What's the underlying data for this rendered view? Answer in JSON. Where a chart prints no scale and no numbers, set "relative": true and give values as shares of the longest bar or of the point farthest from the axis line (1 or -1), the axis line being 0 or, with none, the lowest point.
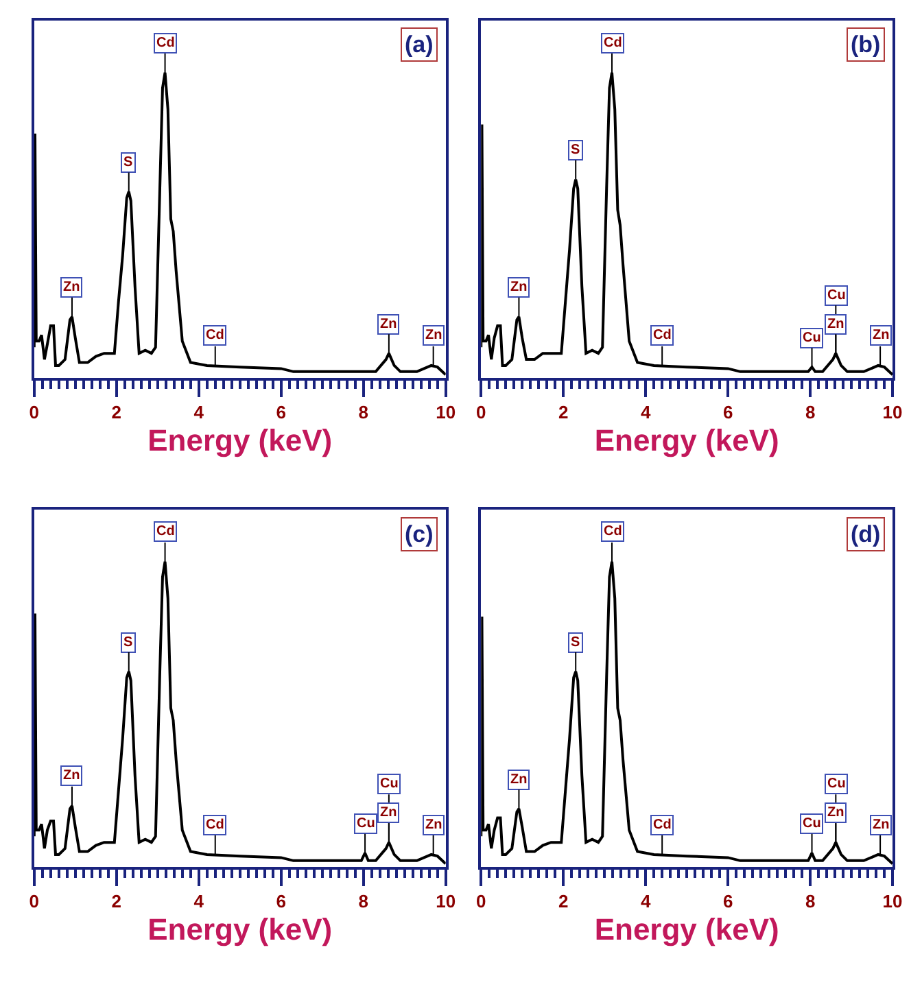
{
  "chart_data": [
    {
      "type": "line",
      "title": "(a)",
      "xlabel": "Energy (keV)",
      "relative": true,
      "xlim": [
        0,
        10
      ],
      "xticks": [
        0,
        2,
        4,
        6,
        8,
        10
      ],
      "tick_labels": "x",
      "x": [
        0.0,
        0.02,
        0.05,
        0.12,
        0.18,
        0.25,
        0.32,
        0.4,
        0.47,
        0.52,
        0.6,
        0.75,
        0.87,
        0.92,
        1.0,
        1.1,
        1.3,
        1.5,
        1.7,
        1.95,
        2.05,
        2.15,
        2.25,
        2.3,
        2.35,
        2.45,
        2.55,
        2.7,
        2.85,
        2.95,
        3.05,
        3.12,
        3.18,
        3.25,
        3.32,
        3.38,
        3.45,
        3.6,
        3.8,
        4.2,
        5.0,
        6.0,
        6.3,
        7.5,
        8.3,
        8.55,
        8.62,
        8.75,
        8.9,
        9.3,
        9.65,
        9.8,
        10.0
      ],
      "series": [
        {
          "color": "#000000",
          "values": [
            0.1,
            0.8,
            0.12,
            0.12,
            0.14,
            0.06,
            0.11,
            0.17,
            0.17,
            0.04,
            0.04,
            0.06,
            0.19,
            0.2,
            0.13,
            0.05,
            0.05,
            0.07,
            0.08,
            0.08,
            0.25,
            0.4,
            0.59,
            0.61,
            0.58,
            0.3,
            0.08,
            0.09,
            0.08,
            0.1,
            0.6,
            0.95,
            1.0,
            0.88,
            0.52,
            0.48,
            0.35,
            0.12,
            0.05,
            0.04,
            0.035,
            0.03,
            0.02,
            0.02,
            0.02,
            0.06,
            0.08,
            0.04,
            0.02,
            0.02,
            0.04,
            0.035,
            0.01
          ]
        }
      ],
      "annotations": [
        {
          "text": "Zn",
          "x": 0.92,
          "y": 0.2
        },
        {
          "text": "S",
          "x": 2.3,
          "y": 0.61
        },
        {
          "text": "Cd",
          "x": 3.18,
          "y": 1.0
        },
        {
          "text": "Cd",
          "x": 4.4,
          "y": 0.04
        },
        {
          "text": "Zn",
          "x": 8.62,
          "y": 0.08
        },
        {
          "text": "Zn",
          "x": 9.7,
          "y": 0.04
        }
      ]
    },
    {
      "type": "line",
      "title": "(b)",
      "xlabel": "Energy (keV)",
      "relative": true,
      "xlim": [
        0,
        10
      ],
      "xticks": [
        0,
        2,
        4,
        6,
        8,
        10
      ],
      "tick_labels": "x",
      "x": [
        0.0,
        0.02,
        0.05,
        0.12,
        0.18,
        0.25,
        0.32,
        0.4,
        0.47,
        0.52,
        0.6,
        0.75,
        0.87,
        0.92,
        1.0,
        1.1,
        1.3,
        1.5,
        1.7,
        1.95,
        2.05,
        2.15,
        2.25,
        2.3,
        2.35,
        2.45,
        2.55,
        2.7,
        2.85,
        2.95,
        3.05,
        3.12,
        3.18,
        3.25,
        3.32,
        3.38,
        3.45,
        3.6,
        3.8,
        4.2,
        5.0,
        6.0,
        6.3,
        7.5,
        7.95,
        8.04,
        8.12,
        8.3,
        8.55,
        8.62,
        8.75,
        8.9,
        9.3,
        9.65,
        9.8,
        10.0
      ],
      "series": [
        {
          "color": "#000000",
          "values": [
            0.1,
            0.83,
            0.12,
            0.12,
            0.14,
            0.06,
            0.13,
            0.17,
            0.17,
            0.04,
            0.04,
            0.06,
            0.19,
            0.2,
            0.13,
            0.06,
            0.06,
            0.08,
            0.08,
            0.08,
            0.25,
            0.42,
            0.62,
            0.65,
            0.62,
            0.3,
            0.08,
            0.09,
            0.08,
            0.1,
            0.62,
            0.95,
            1.0,
            0.88,
            0.55,
            0.5,
            0.37,
            0.12,
            0.05,
            0.04,
            0.035,
            0.03,
            0.02,
            0.02,
            0.02,
            0.035,
            0.02,
            0.02,
            0.06,
            0.08,
            0.04,
            0.02,
            0.02,
            0.04,
            0.035,
            0.01
          ]
        }
      ],
      "annotations": [
        {
          "text": "Zn",
          "x": 0.92,
          "y": 0.2
        },
        {
          "text": "S",
          "x": 2.3,
          "y": 0.65
        },
        {
          "text": "Cd",
          "x": 3.18,
          "y": 1.0
        },
        {
          "text": "Cd",
          "x": 4.4,
          "y": 0.04
        },
        {
          "text": "Cu",
          "x": 8.04,
          "y": 0.035
        },
        {
          "text": "Zn",
          "x": 8.62,
          "y": 0.08
        },
        {
          "text": "Cu",
          "x": 8.62,
          "y": 0.08
        },
        {
          "text": "Zn",
          "x": 9.7,
          "y": 0.04
        }
      ]
    },
    {
      "type": "line",
      "title": "(c)",
      "xlabel": "Energy (keV)",
      "relative": true,
      "xlim": [
        0,
        10
      ],
      "xticks": [
        0,
        2,
        4,
        6,
        8,
        10
      ],
      "tick_labels": "x",
      "x": [
        0.0,
        0.02,
        0.05,
        0.12,
        0.18,
        0.25,
        0.32,
        0.4,
        0.47,
        0.52,
        0.6,
        0.75,
        0.87,
        0.92,
        1.0,
        1.1,
        1.3,
        1.5,
        1.7,
        1.95,
        2.05,
        2.15,
        2.25,
        2.3,
        2.35,
        2.45,
        2.55,
        2.7,
        2.85,
        2.95,
        3.05,
        3.12,
        3.18,
        3.25,
        3.32,
        3.38,
        3.45,
        3.6,
        3.8,
        4.2,
        5.0,
        6.0,
        6.3,
        7.5,
        7.95,
        8.04,
        8.12,
        8.3,
        8.55,
        8.62,
        8.75,
        8.9,
        9.3,
        9.65,
        9.8,
        10.0
      ],
      "series": [
        {
          "color": "#000000",
          "values": [
            0.1,
            0.83,
            0.12,
            0.12,
            0.14,
            0.06,
            0.12,
            0.15,
            0.15,
            0.04,
            0.04,
            0.06,
            0.19,
            0.2,
            0.13,
            0.05,
            0.05,
            0.07,
            0.08,
            0.08,
            0.25,
            0.42,
            0.62,
            0.64,
            0.61,
            0.3,
            0.08,
            0.09,
            0.08,
            0.1,
            0.62,
            0.95,
            1.0,
            0.88,
            0.52,
            0.48,
            0.35,
            0.12,
            0.05,
            0.04,
            0.035,
            0.03,
            0.02,
            0.02,
            0.02,
            0.045,
            0.02,
            0.02,
            0.06,
            0.08,
            0.04,
            0.02,
            0.02,
            0.04,
            0.035,
            0.01
          ]
        }
      ],
      "annotations": [
        {
          "text": "Zn",
          "x": 0.92,
          "y": 0.2
        },
        {
          "text": "S",
          "x": 2.3,
          "y": 0.64
        },
        {
          "text": "Cd",
          "x": 3.18,
          "y": 1.0
        },
        {
          "text": "Cd",
          "x": 4.4,
          "y": 0.04
        },
        {
          "text": "Cu",
          "x": 8.04,
          "y": 0.045
        },
        {
          "text": "Zn",
          "x": 8.62,
          "y": 0.08
        },
        {
          "text": "Cu",
          "x": 8.62,
          "y": 0.08
        },
        {
          "text": "Zn",
          "x": 9.7,
          "y": 0.04
        }
      ]
    },
    {
      "type": "line",
      "title": "(d)",
      "xlabel": "Energy (keV)",
      "relative": true,
      "xlim": [
        0,
        10
      ],
      "xticks": [
        0,
        2,
        4,
        6,
        8,
        10
      ],
      "tick_labels": "x",
      "x": [
        0.0,
        0.02,
        0.05,
        0.12,
        0.18,
        0.25,
        0.32,
        0.4,
        0.47,
        0.52,
        0.6,
        0.75,
        0.87,
        0.92,
        1.0,
        1.1,
        1.3,
        1.5,
        1.7,
        1.95,
        2.05,
        2.15,
        2.25,
        2.3,
        2.35,
        2.45,
        2.55,
        2.7,
        2.85,
        2.95,
        3.05,
        3.12,
        3.18,
        3.25,
        3.32,
        3.38,
        3.45,
        3.6,
        3.8,
        4.2,
        5.0,
        6.0,
        6.3,
        7.5,
        7.95,
        8.04,
        8.12,
        8.3,
        8.55,
        8.62,
        8.75,
        8.9,
        9.3,
        9.65,
        9.8,
        10.0
      ],
      "series": [
        {
          "color": "#000000",
          "values": [
            0.1,
            0.82,
            0.12,
            0.12,
            0.14,
            0.06,
            0.12,
            0.16,
            0.16,
            0.04,
            0.04,
            0.06,
            0.18,
            0.19,
            0.13,
            0.05,
            0.05,
            0.07,
            0.08,
            0.08,
            0.25,
            0.42,
            0.62,
            0.64,
            0.61,
            0.3,
            0.08,
            0.09,
            0.08,
            0.1,
            0.62,
            0.95,
            1.0,
            0.88,
            0.52,
            0.48,
            0.35,
            0.12,
            0.05,
            0.04,
            0.035,
            0.03,
            0.02,
            0.02,
            0.02,
            0.045,
            0.02,
            0.02,
            0.06,
            0.08,
            0.04,
            0.02,
            0.02,
            0.04,
            0.035,
            0.01
          ]
        }
      ],
      "annotations": [
        {
          "text": "Zn",
          "x": 0.92,
          "y": 0.19
        },
        {
          "text": "S",
          "x": 2.3,
          "y": 0.64
        },
        {
          "text": "Cd",
          "x": 3.18,
          "y": 1.0
        },
        {
          "text": "Cd",
          "x": 4.4,
          "y": 0.04
        },
        {
          "text": "Cu",
          "x": 8.04,
          "y": 0.045
        },
        {
          "text": "Zn",
          "x": 8.62,
          "y": 0.08
        },
        {
          "text": "Cu",
          "x": 8.62,
          "y": 0.08
        },
        {
          "text": "Zn",
          "x": 9.7,
          "y": 0.04
        }
      ]
    }
  ]
}
